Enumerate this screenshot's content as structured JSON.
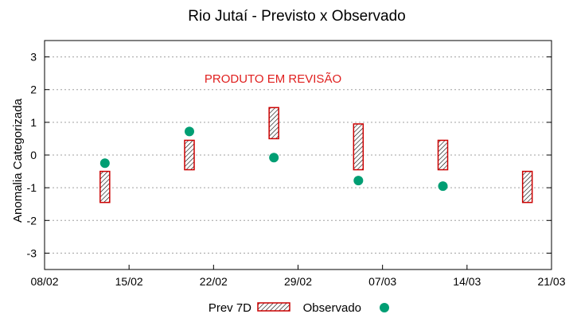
{
  "chart_data": {
    "type": "scatter",
    "title": "Rio Jutaí - Previsto x Observado",
    "ylabel": "Anomalia Categorizada",
    "xlabel": "",
    "annotation": "PRODUTO EM REVISÃO",
    "ylim": [
      -3.5,
      3.5
    ],
    "yticks": [
      3,
      2,
      1,
      0,
      -1,
      -2,
      -3
    ],
    "ytick_labels": [
      "3",
      "2",
      "1",
      "0",
      "-1",
      "-2",
      "-3"
    ],
    "xlim": [
      "08/02",
      "21/03"
    ],
    "xtick_labels": [
      "08/02",
      "15/02",
      "22/02",
      "29/02",
      "07/03",
      "14/03",
      "21/03"
    ],
    "grid": true,
    "legend_placement": "bottom",
    "series": [
      {
        "name": "Prev 7D",
        "kind": "range-box",
        "color": "#cc0000",
        "points": [
          {
            "x": "13/02",
            "low": -1.45,
            "high": -0.5
          },
          {
            "x": "20/02",
            "low": -0.45,
            "high": 0.45
          },
          {
            "x": "27/02",
            "low": 0.5,
            "high": 1.45
          },
          {
            "x": "05/03",
            "low": -0.45,
            "high": 0.95
          },
          {
            "x": "12/03",
            "low": -0.45,
            "high": 0.45
          },
          {
            "x": "19/03",
            "low": -1.45,
            "high": -0.5
          }
        ]
      },
      {
        "name": "Observado",
        "kind": "point",
        "color": "#009e73",
        "points": [
          {
            "x": "13/02",
            "y": -0.25
          },
          {
            "x": "20/02",
            "y": 0.72
          },
          {
            "x": "27/02",
            "y": -0.08
          },
          {
            "x": "05/03",
            "y": -0.78
          },
          {
            "x": "12/03",
            "y": -0.95
          }
        ]
      }
    ]
  },
  "colors": {
    "grid": "#a0a0a0",
    "annotation": "#e0201f"
  }
}
